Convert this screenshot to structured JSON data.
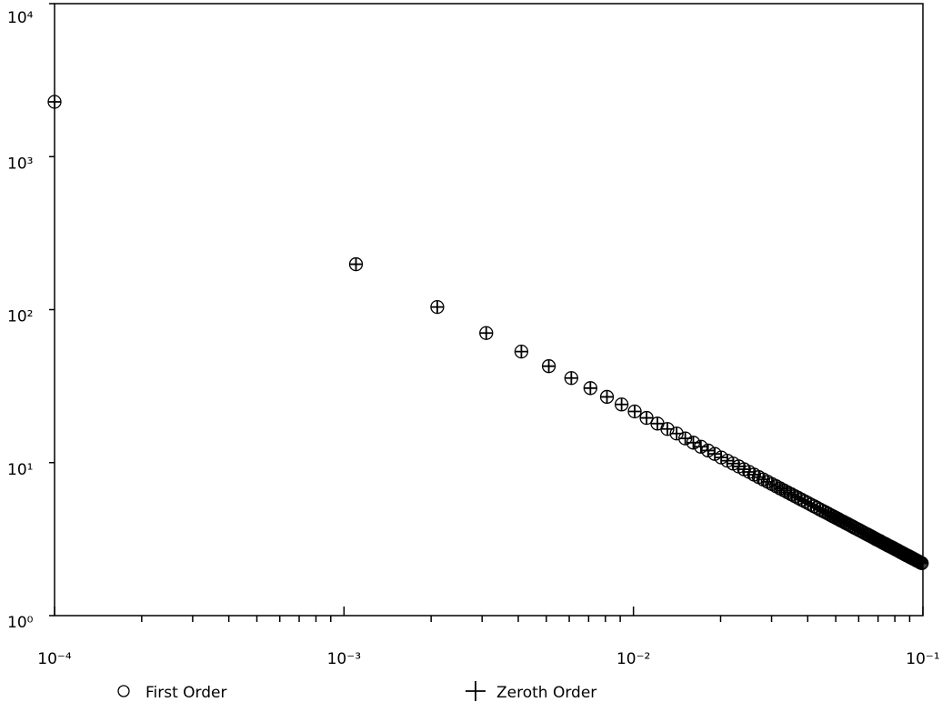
{
  "chart_data": {
    "type": "scatter",
    "xscale": "log",
    "yscale": "log",
    "xlim": [
      0.0001,
      0.1
    ],
    "ylim": [
      1,
      10000
    ],
    "xticks": [
      {
        "value": 0.0001,
        "label": "10⁻⁴"
      },
      {
        "value": 0.001,
        "label": "10⁻³"
      },
      {
        "value": 0.01,
        "label": "10⁻²"
      },
      {
        "value": 0.1,
        "label": "10⁻¹"
      }
    ],
    "xminorticks": [
      0.0002,
      0.0003,
      0.0004,
      0.0005,
      0.0006,
      0.0007,
      0.0008,
      0.0009,
      0.002,
      0.003,
      0.004,
      0.005,
      0.006,
      0.007,
      0.008,
      0.009,
      0.02,
      0.03,
      0.04,
      0.05,
      0.06,
      0.07,
      0.08,
      0.09
    ],
    "yticks": [
      {
        "value": 1,
        "label": "10⁰"
      },
      {
        "value": 10,
        "label": "10¹"
      },
      {
        "value": 100,
        "label": "10²"
      },
      {
        "value": 1000,
        "label": "10³"
      },
      {
        "value": 10000,
        "label": "10⁴"
      }
    ],
    "x": [
      0.0001,
      0.0011,
      0.0021,
      0.0031,
      0.0041,
      0.0051,
      0.0061,
      0.0071,
      0.0081,
      0.0091,
      0.0101,
      0.0111,
      0.0121,
      0.0131,
      0.0141,
      0.0151,
      0.0161,
      0.0171,
      0.0181,
      0.0191,
      0.0201,
      0.0211,
      0.0221,
      0.0231,
      0.0241,
      0.0251,
      0.0261,
      0.0271,
      0.0281,
      0.0291,
      0.0301,
      0.0311,
      0.0321,
      0.0331,
      0.0341,
      0.0351,
      0.0361,
      0.0371,
      0.0381,
      0.0391,
      0.0401,
      0.0411,
      0.0421,
      0.0431,
      0.0441,
      0.0451,
      0.0461,
      0.0471,
      0.0481,
      0.0491,
      0.0501,
      0.0511,
      0.0521,
      0.0531,
      0.0541,
      0.0551,
      0.0561,
      0.0571,
      0.0581,
      0.0591,
      0.0601,
      0.0611,
      0.0621,
      0.0631,
      0.0641,
      0.0651,
      0.0661,
      0.0671,
      0.0681,
      0.0691,
      0.0701,
      0.0711,
      0.0721,
      0.0731,
      0.0741,
      0.0751,
      0.0761,
      0.0771,
      0.0781,
      0.0791,
      0.0801,
      0.0811,
      0.0821,
      0.0831,
      0.0841,
      0.0851,
      0.0861,
      0.0871,
      0.0881,
      0.0891,
      0.0901,
      0.0911,
      0.0921,
      0.0931,
      0.0941,
      0.0951,
      0.0961,
      0.0971,
      0.0981,
      0.0991
    ],
    "series": [
      {
        "name": "First Order",
        "marker": "circle",
        "color": "#000000",
        "values": [
          2280,
          198,
          104,
          70.3,
          53.2,
          42.7,
          35.7,
          30.7,
          26.9,
          24.0,
          21.6,
          19.6,
          18.0,
          16.6,
          15.5,
          14.4,
          13.5,
          12.7,
          12.0,
          11.4,
          10.8,
          10.3,
          9.86,
          9.44,
          9.05,
          8.69,
          8.35,
          8.04,
          7.76,
          7.49,
          7.24,
          7.01,
          6.79,
          6.59,
          6.39,
          6.21,
          6.04,
          5.88,
          5.72,
          5.58,
          5.44,
          5.3,
          5.18,
          5.06,
          4.94,
          4.83,
          4.73,
          4.63,
          4.53,
          4.44,
          4.35,
          4.27,
          4.18,
          4.11,
          4.03,
          3.96,
          3.89,
          3.82,
          3.75,
          3.69,
          3.63,
          3.57,
          3.51,
          3.45,
          3.4,
          3.35,
          3.3,
          3.25,
          3.2,
          3.15,
          3.11,
          3.07,
          3.02,
          2.98,
          2.94,
          2.9,
          2.86,
          2.83,
          2.79,
          2.76,
          2.72,
          2.69,
          2.66,
          2.62,
          2.59,
          2.56,
          2.53,
          2.5,
          2.47,
          2.45,
          2.42,
          2.39,
          2.37,
          2.34,
          2.32,
          2.29,
          2.27,
          2.25,
          2.22,
          2.2
        ]
      },
      {
        "name": "Zeroth Order",
        "marker": "plus",
        "color": "#000000",
        "values": [
          2280,
          198,
          104,
          70.3,
          53.2,
          42.7,
          35.7,
          30.7,
          26.9,
          24.0,
          21.6,
          19.6,
          18.0,
          16.6,
          15.5,
          14.4,
          13.5,
          12.7,
          12.0,
          11.4,
          10.8,
          10.3,
          9.86,
          9.44,
          9.05,
          8.69,
          8.35,
          8.04,
          7.76,
          7.49,
          7.24,
          7.01,
          6.79,
          6.59,
          6.39,
          6.21,
          6.04,
          5.88,
          5.72,
          5.58,
          5.44,
          5.3,
          5.18,
          5.06,
          4.94,
          4.83,
          4.73,
          4.63,
          4.53,
          4.44,
          4.35,
          4.27,
          4.18,
          4.11,
          4.03,
          3.96,
          3.89,
          3.82,
          3.75,
          3.69,
          3.63,
          3.57,
          3.51,
          3.45,
          3.4,
          3.35,
          3.3,
          3.25,
          3.2,
          3.15,
          3.11,
          3.07,
          3.02,
          2.98,
          2.94,
          2.9,
          2.86,
          2.83,
          2.79,
          2.76,
          2.72,
          2.69,
          2.66,
          2.62,
          2.59,
          2.56,
          2.53,
          2.5,
          2.47,
          2.45,
          2.42,
          2.39,
          2.37,
          2.34,
          2.32,
          2.29,
          2.27,
          2.25,
          2.22,
          2.2
        ]
      }
    ]
  }
}
